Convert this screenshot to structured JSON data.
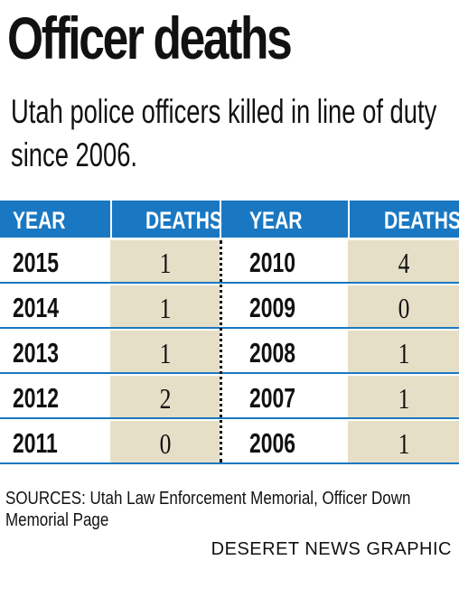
{
  "chart_data": {
    "type": "table",
    "title": "Officer deaths",
    "subtitle": "Utah police officers killed in line of duty since 2006.",
    "columns": [
      "YEAR",
      "DEATHS",
      "YEAR",
      "DEATHS"
    ],
    "left_rows": [
      {
        "year": "2015",
        "deaths": 1
      },
      {
        "year": "2014",
        "deaths": 1
      },
      {
        "year": "2013",
        "deaths": 1
      },
      {
        "year": "2012",
        "deaths": 2
      },
      {
        "year": "2011",
        "deaths": 0
      }
    ],
    "right_rows": [
      {
        "year": "2010",
        "deaths": 4
      },
      {
        "year": "2009",
        "deaths": 0
      },
      {
        "year": "2008",
        "deaths": 1
      },
      {
        "year": "2007",
        "deaths": 1
      },
      {
        "year": "2006",
        "deaths": 1
      }
    ],
    "sources": "SOURCES: Utah Law Enforcement Memorial, Officer Down Memorial Page",
    "credit": "DESERET NEWS GRAPHIC",
    "colors": {
      "header": "#1a78c2",
      "deaths_fill": "#e6dfc7",
      "text": "#111111"
    }
  }
}
